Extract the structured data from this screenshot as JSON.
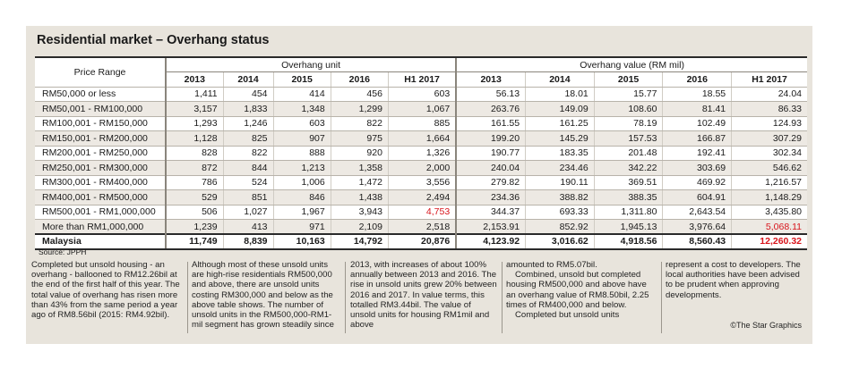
{
  "title": "Residential market – Overhang status",
  "table": {
    "price_range_header": "Price Range",
    "unit_group_header": "Overhang unit",
    "value_group_header": "Overhang value (RM mil)",
    "years": [
      "2013",
      "2014",
      "2015",
      "2016",
      "H1 2017"
    ],
    "rows": [
      {
        "label": "RM50,000 or less",
        "units": [
          "1,411",
          "454",
          "414",
          "456",
          "603"
        ],
        "values": [
          "56.13",
          "18.01",
          "15.77",
          "18.55",
          "24.04"
        ]
      },
      {
        "label": "RM50,001 - RM100,000",
        "units": [
          "3,157",
          "1,833",
          "1,348",
          "1,299",
          "1,067"
        ],
        "values": [
          "263.76",
          "149.09",
          "108.60",
          "81.41",
          "86.33"
        ]
      },
      {
        "label": "RM100,001 - RM150,000",
        "units": [
          "1,293",
          "1,246",
          "603",
          "822",
          "885"
        ],
        "values": [
          "161.55",
          "161.25",
          "78.19",
          "102.49",
          "124.93"
        ]
      },
      {
        "label": "RM150,001 - RM200,000",
        "units": [
          "1,128",
          "825",
          "907",
          "975",
          "1,664"
        ],
        "values": [
          "199.20",
          "145.29",
          "157.53",
          "166.87",
          "307.29"
        ]
      },
      {
        "label": "RM200,001 - RM250,000",
        "units": [
          "828",
          "822",
          "888",
          "920",
          "1,326"
        ],
        "values": [
          "190.77",
          "183.35",
          "201.48",
          "192.41",
          "302.34"
        ]
      },
      {
        "label": "RM250,001 - RM300,000",
        "units": [
          "872",
          "844",
          "1,213",
          "1,358",
          "2,000"
        ],
        "values": [
          "240.04",
          "234.46",
          "342.22",
          "303.69",
          "546.62"
        ]
      },
      {
        "label": "RM300,001 - RM400,000",
        "units": [
          "786",
          "524",
          "1,006",
          "1,472",
          "3,556"
        ],
        "values": [
          "279.82",
          "190.11",
          "369.51",
          "469.92",
          "1,216.57"
        ]
      },
      {
        "label": "RM400,001 - RM500,000",
        "units": [
          "529",
          "851",
          "846",
          "1,438",
          "2,494"
        ],
        "values": [
          "234.36",
          "388.82",
          "388.35",
          "604.91",
          "1,148.29"
        ]
      },
      {
        "label": "RM500,001 - RM1,000,000",
        "units": [
          "506",
          "1,027",
          "1,967",
          "3,943",
          "4,753"
        ],
        "values": [
          "344.37",
          "693.33",
          "1,311.80",
          "2,643.54",
          "3,435.80"
        ]
      },
      {
        "label": "More than RM1,000,000",
        "units": [
          "1,239",
          "413",
          "971",
          "2,109",
          "2,518"
        ],
        "values": [
          "2,153.91",
          "852.92",
          "1,945.13",
          "3,976.64",
          "5,068.11"
        ]
      }
    ],
    "total": {
      "label": "Malaysia",
      "units": [
        "11,749",
        "8,839",
        "10,163",
        "14,792",
        "20,876"
      ],
      "values": [
        "4,123.92",
        "3,016.62",
        "4,918.56",
        "8,560.43",
        "12,260.32"
      ]
    }
  },
  "source": "Source: JPPH",
  "text_columns": [
    [
      "Completed but unsold housing - an overhang - ballooned to RM12.26bil at the end of the first half of this year. The total value of overhang has risen more than 43% from the same period a year ago of RM8.56bil (2015: RM4.92bil)."
    ],
    [
      "Although most of these unsold units are high-rise residentials RM500,000 and above, there are unsold units costing RM300,000 and below as the above table shows. The number of unsold units in the RM500,000-RM1-mil segment has grown steadily since"
    ],
    [
      "2013, with increases of about 100% annually between 2013 and 2016. The rise in unsold units grew 20% between 2016 and 2017. In value terms, this totalled RM3.44bil. The value of unsold units for housing RM1mil and above"
    ],
    [
      "amounted to RM5.07bil.",
      "Combined, unsold but completed housing RM500,000 and above have an overhang value of RM8.50bil, 2.25 times of RM400,000 and below.",
      "Completed but unsold units"
    ],
    [
      "represent a cost to developers. The local authorities have been advised to be prudent when approving developments."
    ]
  ],
  "credit": "©The Star Graphics"
}
